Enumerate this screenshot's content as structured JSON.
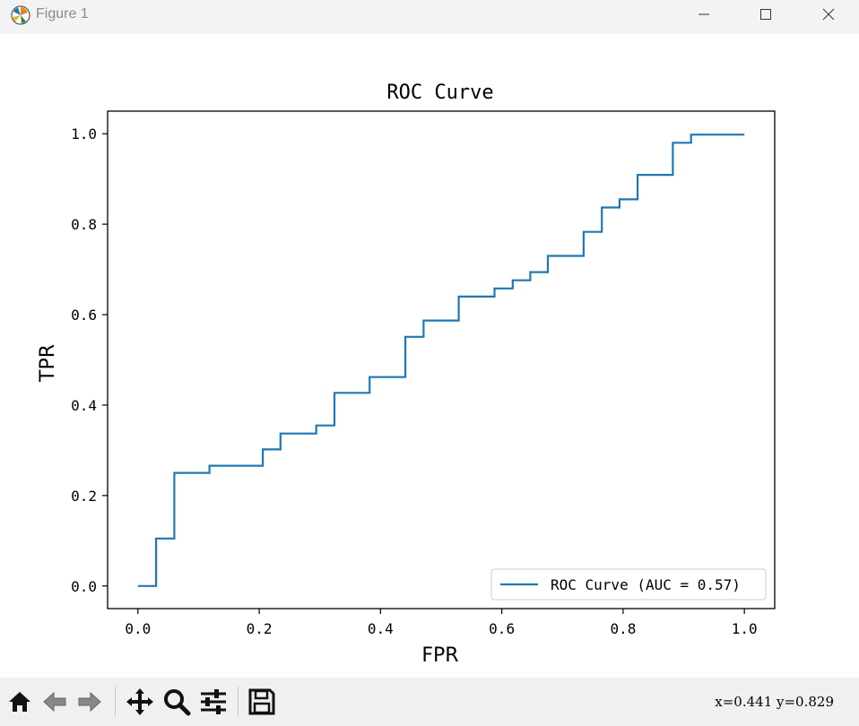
{
  "window": {
    "title": "Figure 1",
    "icon": "matplotlib-logo-icon",
    "controls": [
      "minimize-icon",
      "maximize-icon",
      "close-icon"
    ]
  },
  "toolbar": {
    "buttons": [
      "home-icon",
      "back-arrow-icon",
      "forward-arrow-icon",
      "pan-move-icon",
      "zoom-magnifier-icon",
      "subplots-config-icon",
      "save-floppy-icon"
    ],
    "coordinates": "x=0.441 y=0.829"
  },
  "chart_data": {
    "type": "line",
    "title": "ROC Curve",
    "xlabel": "FPR",
    "ylabel": "TPR",
    "xlim": [
      -0.05,
      1.05
    ],
    "ylim": [
      -0.05,
      1.05
    ],
    "xticks": [
      0.0,
      0.2,
      0.4,
      0.6,
      0.8,
      1.0
    ],
    "xtick_labels": [
      "0.0",
      "0.2",
      "0.4",
      "0.6",
      "0.8",
      "1.0"
    ],
    "yticks": [
      0.0,
      0.2,
      0.4,
      0.6,
      0.8,
      1.0
    ],
    "ytick_labels": [
      "0.0",
      "0.2",
      "0.4",
      "0.6",
      "0.8",
      "1.0"
    ],
    "grid": false,
    "legend": {
      "placement": "lower-right",
      "entries": [
        "ROC Curve (AUC = 0.57)"
      ]
    },
    "series": [
      {
        "name": "ROC Curve (AUC = 0.57)",
        "color": "#1f77b4",
        "x": [
          0.0,
          0.03,
          0.03,
          0.06,
          0.06,
          0.118,
          0.118,
          0.206,
          0.206,
          0.235,
          0.235,
          0.294,
          0.294,
          0.324,
          0.324,
          0.382,
          0.382,
          0.441,
          0.441,
          0.471,
          0.471,
          0.529,
          0.529,
          0.588,
          0.588,
          0.618,
          0.618,
          0.647,
          0.647,
          0.676,
          0.676,
          0.735,
          0.735,
          0.765,
          0.765,
          0.794,
          0.794,
          0.824,
          0.824,
          0.882,
          0.882,
          0.912,
          0.912,
          1.0
        ],
        "y": [
          0.0,
          0.0,
          0.105,
          0.105,
          0.25,
          0.25,
          0.266,
          0.266,
          0.302,
          0.302,
          0.337,
          0.337,
          0.355,
          0.355,
          0.427,
          0.427,
          0.462,
          0.462,
          0.551,
          0.551,
          0.587,
          0.587,
          0.64,
          0.64,
          0.658,
          0.658,
          0.676,
          0.676,
          0.694,
          0.694,
          0.73,
          0.73,
          0.783,
          0.783,
          0.837,
          0.837,
          0.855,
          0.855,
          0.909,
          0.909,
          0.98,
          0.98,
          0.998,
          0.998
        ]
      }
    ]
  }
}
